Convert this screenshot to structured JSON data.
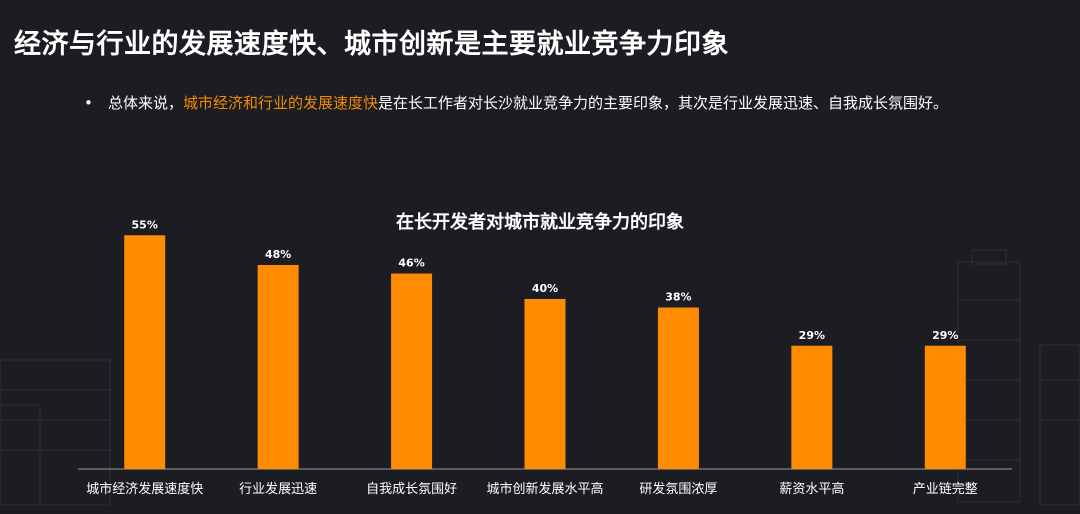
{
  "header": {
    "title": "经济与行业的发展速度快、城市创新是主要就业竞争力印象",
    "bullet_symbol": "•",
    "summary_prefix": "总体来说，",
    "summary_highlight": "城市经济和行业的发展速度快",
    "summary_suffix": "是在长工作者对长沙就业竞争力的主要印象，其次是行业发展迅速、自我成长氛围好。"
  },
  "colors": {
    "background": "#1b1d22",
    "bar": "#ff8c00",
    "highlight_text": "#f28a00",
    "axis": "#9a9a9a"
  },
  "chart_data": {
    "type": "bar",
    "title": "在长开发者对城市就业竞争力的印象",
    "xlabel": "",
    "ylabel": "",
    "categories": [
      "城市经济发展速度快",
      "行业发展迅速",
      "自我成长氛围好",
      "城市创新发展水平高",
      "研发氛围浓厚",
      "薪资水平高",
      "产业链完整"
    ],
    "values": [
      55,
      48,
      46,
      40,
      38,
      29,
      29
    ],
    "value_labels": [
      "55%",
      "48%",
      "46%",
      "40%",
      "38%",
      "29%",
      "29%"
    ],
    "ylim": [
      0,
      60
    ],
    "grid": false,
    "legend": "none"
  }
}
